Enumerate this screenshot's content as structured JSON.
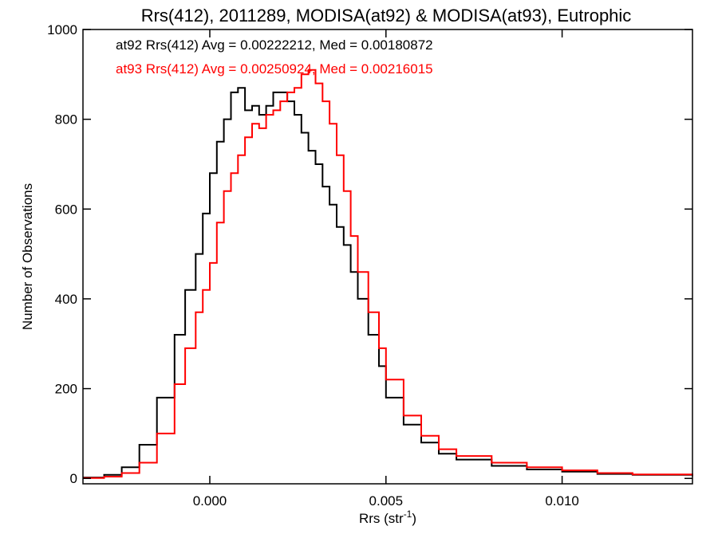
{
  "chart_data": {
    "type": "line",
    "title": "Rrs(412), 2011289, MODISA(at92) & MODISA(at93), Eutrophic",
    "xlabel": "Rrs (str",
    "xlabel_sup": "-1",
    "xlabel_close": ")",
    "ylabel": "Number of Observations",
    "xlim": [
      -0.0036,
      0.0137
    ],
    "ylim": [
      -12,
      1000
    ],
    "xticks": [
      0.0,
      0.005,
      0.01
    ],
    "xtick_labels": [
      "0.000",
      "0.005",
      "0.010"
    ],
    "yticks": [
      0,
      200,
      400,
      600,
      800,
      1000
    ],
    "ytick_labels": [
      "0",
      "200",
      "400",
      "600",
      "800",
      "1000"
    ],
    "grid": false,
    "annotations": [
      {
        "text": "at92 Rrs(412) Avg = 0.00222212, Med = 0.00180872",
        "color": "#000000"
      },
      {
        "text": "at93 Rrs(412) Avg = 0.00250924, Med = 0.00216015",
        "color": "#ff0000"
      }
    ],
    "series": [
      {
        "color": "#000000",
        "x": [
          -0.0036,
          -0.003,
          -0.0025,
          -0.002,
          -0.0015,
          -0.001,
          -0.0007,
          -0.0004,
          -0.0002,
          0.0,
          0.0002,
          0.0004,
          0.0006,
          0.0008,
          0.001,
          0.0012,
          0.0014,
          0.0016,
          0.0018,
          0.002,
          0.0022,
          0.0024,
          0.0026,
          0.0028,
          0.003,
          0.0032,
          0.0034,
          0.0036,
          0.0038,
          0.004,
          0.0042,
          0.0045,
          0.0048,
          0.005,
          0.0055,
          0.006,
          0.0065,
          0.007,
          0.008,
          0.009,
          0.01,
          0.011,
          0.012,
          0.0137
        ],
        "values": [
          2,
          8,
          25,
          75,
          180,
          320,
          420,
          500,
          590,
          680,
          750,
          800,
          860,
          870,
          820,
          830,
          810,
          830,
          860,
          860,
          840,
          810,
          770,
          730,
          700,
          650,
          610,
          560,
          520,
          460,
          400,
          320,
          250,
          180,
          120,
          80,
          55,
          42,
          28,
          20,
          15,
          10,
          8,
          5
        ]
      },
      {
        "color": "#ff0000",
        "x": [
          -0.0036,
          -0.003,
          -0.0025,
          -0.002,
          -0.0015,
          -0.001,
          -0.0007,
          -0.0004,
          -0.0002,
          0.0,
          0.0002,
          0.0004,
          0.0006,
          0.0008,
          0.001,
          0.0012,
          0.0014,
          0.0016,
          0.0018,
          0.002,
          0.0022,
          0.0024,
          0.0026,
          0.0028,
          0.003,
          0.0032,
          0.0034,
          0.0036,
          0.0038,
          0.004,
          0.0042,
          0.0045,
          0.0048,
          0.005,
          0.0055,
          0.006,
          0.0065,
          0.007,
          0.008,
          0.009,
          0.01,
          0.011,
          0.012,
          0.0137
        ],
        "values": [
          1,
          4,
          12,
          35,
          100,
          210,
          290,
          370,
          420,
          480,
          570,
          640,
          680,
          720,
          760,
          790,
          780,
          810,
          820,
          840,
          860,
          870,
          900,
          910,
          880,
          840,
          790,
          720,
          640,
          540,
          460,
          370,
          290,
          220,
          140,
          95,
          65,
          50,
          35,
          25,
          18,
          12,
          9,
          6
        ]
      }
    ]
  }
}
